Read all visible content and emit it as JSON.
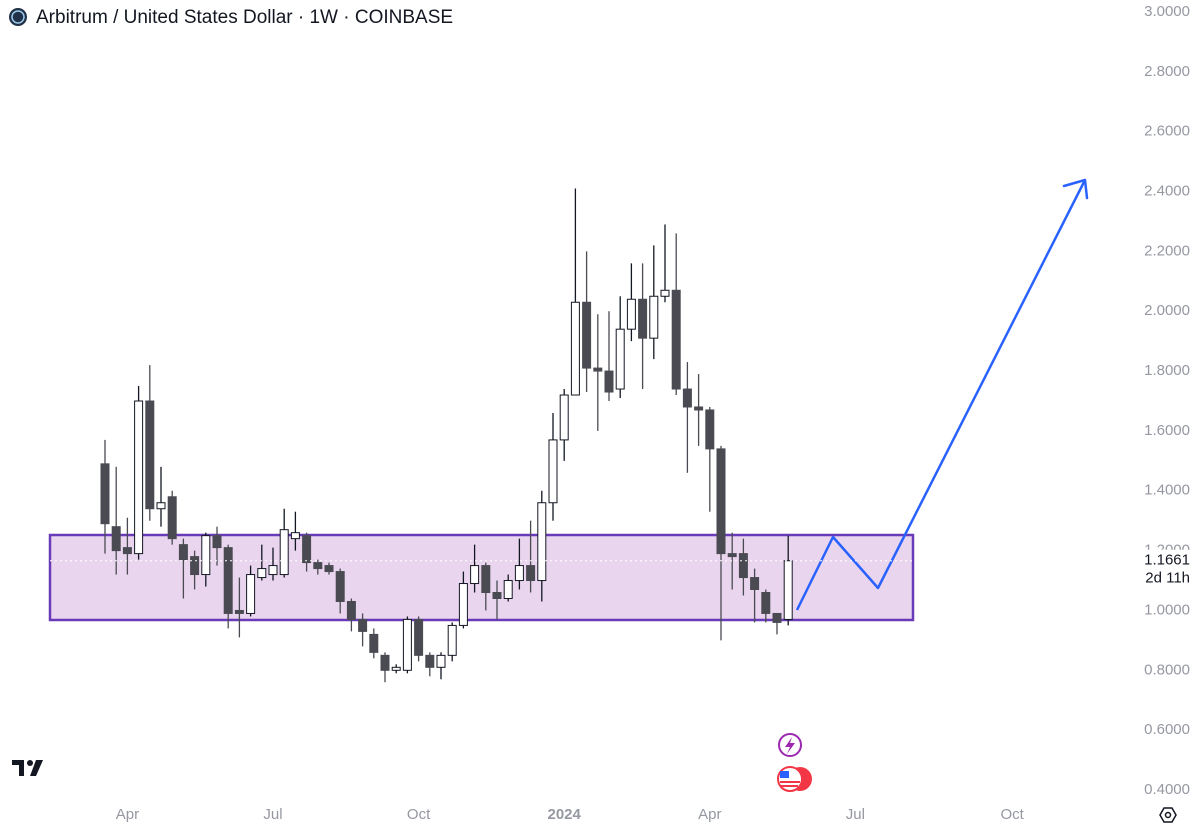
{
  "chart_data": {
    "type": "candlestick",
    "title": "Arbitrum / United States Dollar · 1W · COINBASE",
    "categories": [
      null,
      null,
      "Apr",
      null,
      null,
      null,
      null,
      null,
      null,
      null,
      null,
      null,
      null,
      null,
      null,
      "Jul",
      null,
      null,
      null,
      null,
      null,
      null,
      null,
      null,
      null,
      null,
      null,
      null,
      "Oct",
      null,
      null,
      null,
      null,
      null,
      null,
      null,
      null,
      null,
      null,
      null,
      null,
      "2024",
      null,
      null,
      null,
      null,
      null,
      null,
      null,
      null,
      null,
      null,
      null,
      null,
      "Apr",
      null,
      null,
      null,
      null,
      null,
      null,
      null,
      null,
      null,
      null,
      null,
      null,
      "Jul",
      null,
      null,
      null,
      null,
      null,
      null,
      null,
      null,
      null,
      null,
      null,
      null,
      null,
      "Oct",
      null,
      null,
      null,
      null,
      null,
      null,
      null,
      null,
      null,
      null,
      null,
      null,
      null,
      null
    ],
    "open": [
      1.49,
      1.28,
      1.21,
      1.19,
      1.7,
      1.34,
      1.38,
      1.22,
      1.18,
      1.12,
      1.25,
      1.21,
      1.0,
      0.99,
      1.11,
      1.12,
      1.12,
      1.24,
      1.25,
      1.16,
      1.15,
      1.13,
      1.03,
      0.97,
      0.92,
      0.85,
      0.8,
      0.8,
      0.97,
      0.85,
      0.81,
      0.85,
      0.95,
      1.09,
      1.15,
      1.06,
      1.04,
      1.1,
      1.15,
      1.1,
      1.36,
      1.57,
      1.72,
      2.03,
      1.81,
      1.8,
      1.74,
      1.94,
      2.04,
      1.91,
      2.05,
      2.07,
      1.74,
      1.68,
      1.67,
      1.54,
      1.19,
      1.19,
      1.11,
      1.06,
      0.99,
      0.97,
      null,
      null,
      null,
      null,
      null,
      null,
      null,
      null,
      null,
      null,
      null,
      null,
      null,
      null,
      null,
      null,
      null,
      null,
      null,
      null,
      null,
      null,
      null,
      null,
      null,
      null,
      null,
      null,
      null,
      null,
      null,
      null,
      null,
      null
    ],
    "high": [
      1.57,
      1.48,
      1.31,
      1.75,
      1.82,
      1.48,
      1.4,
      1.24,
      1.2,
      1.26,
      1.28,
      1.22,
      1.11,
      1.15,
      1.22,
      1.21,
      1.34,
      1.33,
      1.26,
      1.17,
      1.16,
      1.14,
      1.04,
      0.99,
      0.94,
      0.86,
      0.82,
      0.98,
      0.98,
      0.86,
      0.86,
      0.96,
      1.13,
      1.22,
      1.16,
      1.1,
      1.12,
      1.24,
      1.3,
      1.4,
      1.66,
      1.74,
      2.41,
      2.2,
      1.99,
      2.0,
      2.05,
      2.16,
      2.16,
      2.22,
      2.29,
      2.26,
      1.83,
      1.79,
      1.68,
      1.55,
      1.26,
      1.24,
      1.14,
      1.07,
      0.99,
      1.25,
      null,
      null,
      null,
      null,
      null,
      null,
      null,
      null,
      null,
      null,
      null,
      null,
      null,
      null,
      null,
      null,
      null,
      null,
      null,
      null,
      null,
      null,
      null,
      null,
      null,
      null,
      null,
      null,
      null,
      null,
      null,
      null,
      null,
      null
    ],
    "low": [
      1.19,
      1.12,
      1.12,
      1.17,
      1.3,
      1.28,
      1.22,
      1.04,
      1.07,
      1.08,
      1.15,
      0.94,
      0.91,
      0.98,
      1.1,
      1.1,
      1.11,
      1.2,
      1.13,
      1.12,
      1.12,
      0.99,
      0.93,
      0.88,
      0.84,
      0.76,
      0.79,
      0.79,
      0.83,
      0.78,
      0.77,
      0.83,
      0.94,
      1.06,
      1.0,
      0.97,
      1.03,
      1.07,
      1.06,
      1.03,
      1.3,
      1.5,
      1.72,
      1.73,
      1.6,
      1.7,
      1.71,
      1.9,
      1.74,
      1.84,
      2.03,
      1.72,
      1.46,
      1.55,
      1.33,
      0.9,
      1.07,
      1.05,
      0.96,
      0.96,
      0.92,
      0.95,
      null,
      null,
      null,
      null,
      null,
      null,
      null,
      null,
      null,
      null,
      null,
      null,
      null,
      null,
      null,
      null,
      null,
      null,
      null,
      null,
      null,
      null,
      null,
      null,
      null,
      null,
      null,
      null,
      null,
      null,
      null,
      null,
      null,
      null
    ],
    "close": [
      1.29,
      1.2,
      1.19,
      1.7,
      1.34,
      1.36,
      1.24,
      1.17,
      1.12,
      1.25,
      1.21,
      0.99,
      0.99,
      1.12,
      1.14,
      1.15,
      1.27,
      1.26,
      1.16,
      1.14,
      1.13,
      1.03,
      0.97,
      0.93,
      0.86,
      0.8,
      0.81,
      0.97,
      0.85,
      0.81,
      0.85,
      0.95,
      1.09,
      1.15,
      1.06,
      1.04,
      1.1,
      1.15,
      1.1,
      1.36,
      1.57,
      1.72,
      2.03,
      1.81,
      1.8,
      1.73,
      1.94,
      2.04,
      1.91,
      2.05,
      2.07,
      1.74,
      1.68,
      1.67,
      1.54,
      1.19,
      1.18,
      1.11,
      1.07,
      0.99,
      0.96,
      1.1661,
      null,
      null,
      null,
      null,
      null,
      null,
      null,
      null,
      null,
      null,
      null,
      null,
      null,
      null,
      null,
      null,
      null,
      null,
      null,
      null,
      null,
      null,
      null,
      null,
      null,
      null,
      null,
      null,
      null,
      null,
      null,
      null,
      null,
      null
    ],
    "up_color": "#ffffff",
    "down_color": "#4a4b52",
    "border_color": "#131722",
    "ylim": [
      0.4,
      3.0
    ],
    "yticks": [
      {
        "value": 0.4,
        "label": "0.4000"
      },
      {
        "value": 0.6,
        "label": "0.6000"
      },
      {
        "value": 0.8,
        "label": "0.8000"
      },
      {
        "value": 1.0,
        "label": "1.0000"
      },
      {
        "value": 1.2,
        "label": "1.2000"
      },
      {
        "value": 1.4,
        "label": "1.4000"
      },
      {
        "value": 1.6,
        "label": "1.6000"
      },
      {
        "value": 1.8,
        "label": "1.8000"
      },
      {
        "value": 2.0,
        "label": "2.0000"
      },
      {
        "value": 2.2,
        "label": "2.2000"
      },
      {
        "value": 2.4,
        "label": "2.4000"
      },
      {
        "value": 2.6,
        "label": "2.6000"
      },
      {
        "value": 2.8,
        "label": "2.8000"
      },
      {
        "value": 3.0,
        "label": "3.0000"
      }
    ],
    "last_price": {
      "value": 1.1661,
      "label": "1.1661"
    },
    "countdown": "2d 11h"
  }
}
